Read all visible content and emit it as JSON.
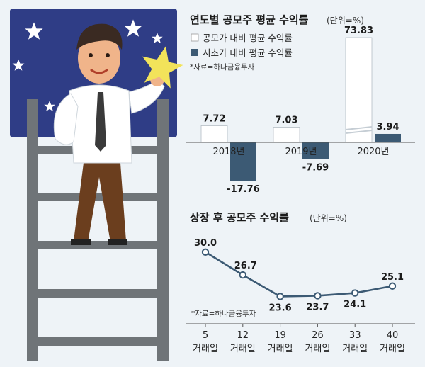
{
  "colors": {
    "background": "#eef3f7",
    "offering_bar": "#ffffff",
    "first_day_bar": "#3c5a74",
    "line": "#3c5a74",
    "night_sky": "#2f3d86",
    "star": "#f2e35a",
    "ladder": "#6f7478"
  },
  "illustration": {
    "icons": [
      "star-icon",
      "ladder-icon",
      "man-holding-star-icon"
    ]
  },
  "chart_data": [
    {
      "type": "bar",
      "title": "연도별 공모주 평균 수익률",
      "unit": "(단위=%)",
      "source": "*자료=하나금융투자",
      "categories": [
        "2018년",
        "2019년",
        "2020년"
      ],
      "series": [
        {
          "name": "공모가 대비 평균 수익률",
          "color": "#ffffff",
          "values": [
            7.72,
            7.03,
            73.83
          ]
        },
        {
          "name": "시초가 대비 평균 수익률",
          "color": "#3c5a74",
          "values": [
            -17.76,
            -7.69,
            3.94
          ]
        }
      ],
      "value_labels": [
        [
          "7.72",
          "7.03",
          "73.83"
        ],
        [
          "-17.76",
          "-7.69",
          "3.94"
        ]
      ],
      "axis_break": true,
      "legend_position": "top-left"
    },
    {
      "type": "line",
      "title": "상장 후 공모주 수익률",
      "unit": "(단위=%)",
      "source": "*자료=하나금융투자",
      "x_top": [
        "5",
        "12",
        "19",
        "26",
        "33",
        "40"
      ],
      "x_bottom": "거래일",
      "values": [
        30.0,
        26.7,
        23.6,
        23.7,
        24.1,
        25.1
      ],
      "value_labels": [
        "30.0",
        "26.7",
        "23.6",
        "23.7",
        "24.1",
        "25.1"
      ],
      "ylim": [
        21.5,
        31
      ]
    }
  ]
}
